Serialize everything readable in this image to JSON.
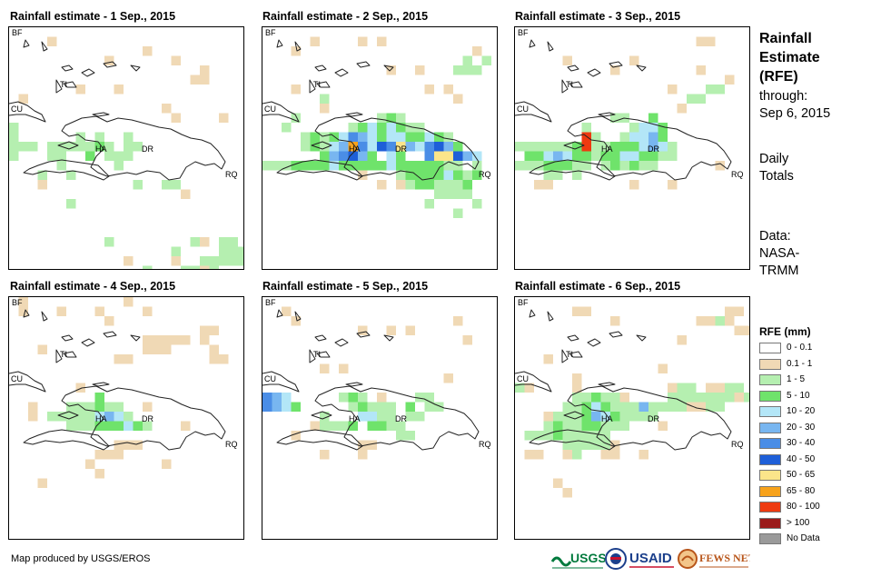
{
  "panels": [
    {
      "title": "Rainfall estimate - 1 Sep., 2015"
    },
    {
      "title": "Rainfall estimate - 2 Sep., 2015"
    },
    {
      "title": "Rainfall estimate - 3 Sep., 2015"
    },
    {
      "title": "Rainfall estimate - 4 Sep., 2015"
    },
    {
      "title": "Rainfall estimate - 5 Sep., 2015"
    },
    {
      "title": "Rainfall estimate - 6 Sep., 2015"
    }
  ],
  "map_labels": {
    "bf": "BF",
    "cu": "CU",
    "ti": "TI",
    "ha": "HA",
    "dr": "DR",
    "rq": "RQ"
  },
  "side": {
    "title_line1": "Rainfall",
    "title_line2": "Estimate",
    "title_line3": "(RFE)",
    "through_line1": "through:",
    "through_line2": "Sep 6, 2015",
    "totals_line1": "Daily",
    "totals_line2": "Totals",
    "data_line1": "Data:",
    "data_line2": "NASA-",
    "data_line3": "TRMM"
  },
  "legend": {
    "title": "RFE (mm)",
    "items": [
      {
        "label": "0 - 0.1",
        "color": "#ffffff"
      },
      {
        "label": "0.1 - 1",
        "color": "#f0d9b5"
      },
      {
        "label": "1 - 5",
        "color": "#b5efb0"
      },
      {
        "label": "5 - 10",
        "color": "#6fe36b"
      },
      {
        "label": "10 - 20",
        "color": "#b3e6f7"
      },
      {
        "label": "20 - 30",
        "color": "#78b6f0"
      },
      {
        "label": "30 - 40",
        "color": "#4a8de6"
      },
      {
        "label": "40 - 50",
        "color": "#1e5fd8"
      },
      {
        "label": "50 - 65",
        "color": "#fbe58a"
      },
      {
        "label": "65 - 80",
        "color": "#f7a21b"
      },
      {
        "label": "80 - 100",
        "color": "#ee3a10"
      },
      {
        "label": "> 100",
        "color": "#9b1b1b"
      },
      {
        "label": "No Data",
        "color": "#9a9a9a"
      }
    ]
  },
  "footer": {
    "credit": "Map produced by USGS/EROS"
  },
  "logos": {
    "usgs": "USGS",
    "usaid": "USAID",
    "fewsnet": "FEWS NET"
  }
}
